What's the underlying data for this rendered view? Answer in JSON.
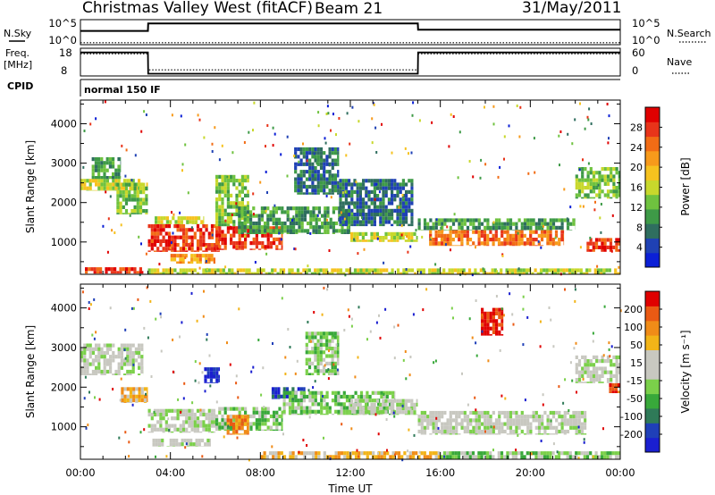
{
  "chart_data": [
    {
      "type": "line",
      "panel": "noise",
      "left_label": "N.Sky",
      "right_label": "N.Search",
      "left_ticks": [
        "10^5",
        "10^0"
      ],
      "right_ticks": [
        "10^5",
        "10^0"
      ],
      "series": [
        {
          "name": "N.Sky",
          "style": "solid",
          "x": [
            0,
            3,
            3.01,
            15,
            15.01,
            24
          ],
          "y": [
            0.55,
            0.55,
            0.85,
            0.85,
            0.6,
            0.6
          ]
        },
        {
          "name": "N.Search",
          "style": "dotted",
          "x": [
            0,
            24
          ],
          "y": [
            0.08,
            0.08
          ]
        }
      ]
    },
    {
      "type": "line",
      "panel": "frequency",
      "left_label_lines": [
        "Freq.",
        "[MHz]"
      ],
      "right_label": "Nave",
      "left_ticks": [
        "18",
        "8"
      ],
      "right_ticks": [
        "60",
        "0"
      ],
      "left_range": [
        8,
        18
      ],
      "series": [
        {
          "name": "Freq.",
          "style": "solid",
          "x": [
            0,
            3,
            3.01,
            15,
            15.01,
            24
          ],
          "y": [
            16.5,
            16.5,
            8.8,
            8.8,
            16.5,
            16.5
          ]
        },
        {
          "name": "Nave",
          "style": "dotted",
          "x": [
            0,
            3,
            3.01,
            15,
            15.01,
            24
          ],
          "y": [
            16.0,
            16.0,
            10.2,
            10.2,
            16.0,
            16.0
          ]
        }
      ]
    },
    {
      "type": "heatmap",
      "panel": "power",
      "ylabel": "Slant Range [km]",
      "yticks": [
        "4000",
        "3000",
        "2000",
        "1000"
      ],
      "ylim": [
        180,
        4600
      ],
      "xlim": [
        0,
        24
      ],
      "colorbar_label": "Power [dB]",
      "colorbar_ticks": [
        "28",
        "24",
        "20",
        "16",
        "12",
        "8",
        "4"
      ],
      "colorbar_colors": [
        "#0b1fd6",
        "#1f41b4",
        "#2f6e5f",
        "#3e9a47",
        "#6fc23f",
        "#c8d82c",
        "#f6c21f",
        "#f79a1b",
        "#f26c15",
        "#e8341a",
        "#e00000"
      ],
      "bands": [
        {
          "x0": 0.0,
          "x1": 3.0,
          "y0": 2300,
          "y1": 2600,
          "level": 5
        },
        {
          "x0": 0.5,
          "x1": 1.8,
          "y0": 2600,
          "y1": 3150,
          "level": 3
        },
        {
          "x0": 1.6,
          "x1": 3.0,
          "y0": 1700,
          "y1": 2500,
          "level": 4
        },
        {
          "x0": 0.2,
          "x1": 2.8,
          "y0": 200,
          "y1": 360,
          "level": 9
        },
        {
          "x0": 3.0,
          "x1": 6.2,
          "y0": 750,
          "y1": 1450,
          "level": 9
        },
        {
          "x0": 3.3,
          "x1": 5.5,
          "y0": 1450,
          "y1": 1650,
          "level": 5
        },
        {
          "x0": 4.0,
          "x1": 6.0,
          "y0": 450,
          "y1": 700,
          "level": 7
        },
        {
          "x0": 6.0,
          "x1": 9.0,
          "y0": 800,
          "y1": 1400,
          "level": 9
        },
        {
          "x0": 6.0,
          "x1": 7.5,
          "y0": 1400,
          "y1": 2700,
          "level": 4
        },
        {
          "x0": 7.0,
          "x1": 12.0,
          "y0": 1200,
          "y1": 1900,
          "level": 3
        },
        {
          "x0": 9.5,
          "x1": 11.5,
          "y0": 2200,
          "y1": 3400,
          "level": 2
        },
        {
          "x0": 11.5,
          "x1": 14.8,
          "y0": 1400,
          "y1": 2600,
          "level": 2
        },
        {
          "x0": 12.0,
          "x1": 15.0,
          "y0": 1000,
          "y1": 1250,
          "level": 5
        },
        {
          "x0": 15.0,
          "x1": 22.0,
          "y0": 1300,
          "y1": 1600,
          "level": 3
        },
        {
          "x0": 15.5,
          "x1": 21.5,
          "y0": 900,
          "y1": 1300,
          "level": 8
        },
        {
          "x0": 22.0,
          "x1": 24.0,
          "y0": 2100,
          "y1": 2900,
          "level": 4
        },
        {
          "x0": 22.5,
          "x1": 24.0,
          "y0": 750,
          "y1": 1100,
          "level": 9
        },
        {
          "x0": 3.0,
          "x1": 24.0,
          "y0": 180,
          "y1": 330,
          "level": 5
        }
      ]
    },
    {
      "type": "heatmap",
      "panel": "velocity",
      "ylabel": "Slant Range [km]",
      "yticks": [
        "4000",
        "3000",
        "2000",
        "1000"
      ],
      "ylim": [
        180,
        4600
      ],
      "xlim": [
        0,
        24
      ],
      "xlabel": "Time UT",
      "xticks": [
        "00:00",
        "04:00",
        "08:00",
        "12:00",
        "16:00",
        "20:00",
        "00:00"
      ],
      "colorbar_label": "Velocity [m s⁻¹]",
      "colorbar_ticks": [
        "200",
        "100",
        "50",
        "15",
        "-15",
        "-50",
        "-100",
        "-200"
      ],
      "colorbar_colors": [
        "#1a1fd0",
        "#1f3fb8",
        "#2f7a58",
        "#38a83a",
        "#7bd04a",
        "#c8c8c0",
        "#c8c8c0",
        "#f2b418",
        "#f08c18",
        "#ea5a14",
        "#e00000"
      ],
      "bands": [
        {
          "x0": 0.0,
          "x1": 2.8,
          "y0": 2300,
          "y1": 3100,
          "level": 5
        },
        {
          "x0": 1.8,
          "x1": 3.0,
          "y0": 1600,
          "y1": 2000,
          "level": 7
        },
        {
          "x0": 3.0,
          "x1": 6.0,
          "y0": 850,
          "y1": 1450,
          "level": 5
        },
        {
          "x0": 3.2,
          "x1": 5.8,
          "y0": 500,
          "y1": 700,
          "level": 5
        },
        {
          "x0": 6.0,
          "x1": 9.0,
          "y0": 900,
          "y1": 1500,
          "level": 4
        },
        {
          "x0": 6.5,
          "x1": 7.5,
          "y0": 800,
          "y1": 1300,
          "level": 8
        },
        {
          "x0": 8.5,
          "x1": 10.0,
          "y0": 1700,
          "y1": 2000,
          "level": 1
        },
        {
          "x0": 5.5,
          "x1": 6.2,
          "y0": 2100,
          "y1": 2500,
          "level": 0
        },
        {
          "x0": 9.0,
          "x1": 14.0,
          "y0": 1300,
          "y1": 1900,
          "level": 4
        },
        {
          "x0": 10.0,
          "x1": 11.5,
          "y0": 2300,
          "y1": 3400,
          "level": 4
        },
        {
          "x0": 12.0,
          "x1": 15.0,
          "y0": 1300,
          "y1": 1700,
          "level": 5
        },
        {
          "x0": 15.0,
          "x1": 22.5,
          "y0": 800,
          "y1": 1400,
          "level": 5
        },
        {
          "x0": 17.8,
          "x1": 18.8,
          "y0": 3300,
          "y1": 4000,
          "level": 10
        },
        {
          "x0": 22.0,
          "x1": 24.0,
          "y0": 2100,
          "y1": 2800,
          "level": 5
        },
        {
          "x0": 23.5,
          "x1": 24.0,
          "y0": 1850,
          "y1": 2100,
          "level": 9
        },
        {
          "x0": 8.0,
          "x1": 16.0,
          "y0": 180,
          "y1": 380,
          "level": 7
        },
        {
          "x0": 16.0,
          "x1": 24.0,
          "y0": 180,
          "y1": 380,
          "level": 4
        }
      ]
    }
  ],
  "header": {
    "title": "Christmas Valley West (fitACF)",
    "beam": "Beam 21",
    "date": "31/May/2011"
  },
  "cpid": {
    "label": "CPID",
    "value": "normal 150 IF"
  }
}
